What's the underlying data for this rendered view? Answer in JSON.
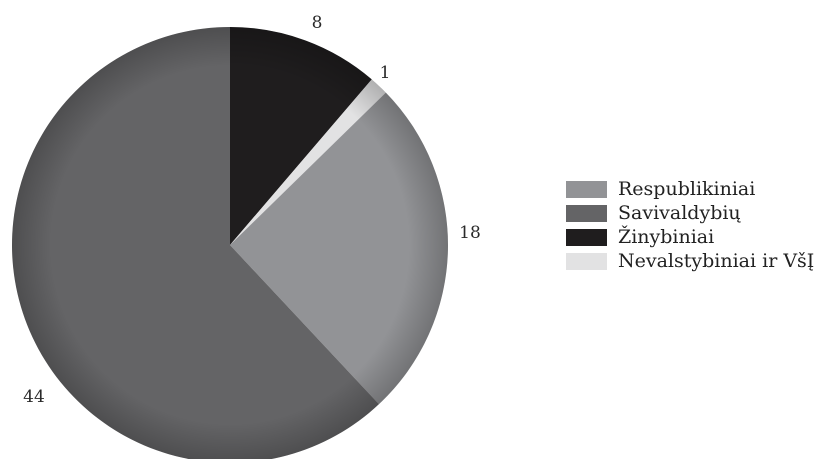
{
  "chart_data": {
    "type": "pie",
    "title": "",
    "legend_position": "right",
    "slices": [
      {
        "name": "Žinybiniai",
        "value": 8,
        "label": "8",
        "color": "#1f1d1e"
      },
      {
        "name": "Nevalstybiniai ir VšĮ",
        "value": 1,
        "label": "1",
        "color": "#e2e2e3"
      },
      {
        "name": "Respublikiniai",
        "value": 18,
        "label": "18",
        "color": "#929396"
      },
      {
        "name": "Savivaldybių",
        "value": 44,
        "label": "44",
        "color": "#646466"
      }
    ],
    "legend": [
      {
        "name": "Respublikiniai",
        "color": "#929396"
      },
      {
        "name": "Savivaldybių",
        "color": "#646466"
      },
      {
        "name": "Žinybiniai",
        "color": "#1f1d1e"
      },
      {
        "name": "Nevalstybiniai ir VšĮ",
        "color": "#e2e2e3"
      }
    ]
  }
}
